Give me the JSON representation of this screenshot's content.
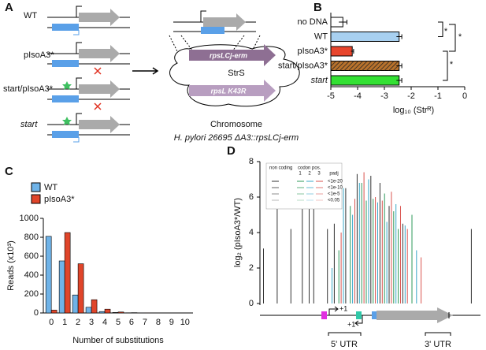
{
  "panel_labels": [
    "A",
    "B",
    "C",
    "D"
  ],
  "panel_a": {
    "constructs": [
      "WT",
      "pIsoA3*",
      "start/pIsoA3*",
      "start"
    ],
    "gene_label": "rpsLCj-erm",
    "phenotype": "StrS",
    "mutant_label": "rpsL K43R",
    "chromosome": "Chromosome",
    "strain": "H. pylori 26695 ΔA3::rpsLCj-erm"
  },
  "chart_data": [
    {
      "type": "hbar",
      "categories": [
        "no DNA",
        "WT",
        "pIsoA3*",
        "start/pIsoA3*",
        "start"
      ],
      "values": [
        -4.55,
        -2.45,
        -4.2,
        -2.45,
        -2.45
      ],
      "errors": [
        0.15,
        0.1,
        0.05,
        0.1,
        0.1
      ],
      "colors": [
        "#ffffff",
        "#a8d0f0",
        "#e8452c",
        "#b8722c",
        "#33e033"
      ],
      "hatch": [
        false,
        false,
        false,
        true,
        false
      ],
      "xlim": [
        -5,
        0
      ],
      "xticks": [
        -5,
        -4,
        -3,
        -2,
        -1,
        0
      ],
      "x_label": "log₁₀ (Strᴿ)",
      "annotations": [
        "*",
        "*",
        "*"
      ]
    },
    {
      "type": "grouped_bar",
      "x": [
        0,
        1,
        2,
        3,
        4,
        5,
        6,
        7,
        8,
        9,
        10
      ],
      "xlim": [
        -0.6,
        10.6
      ],
      "ylim": [
        0,
        1000
      ],
      "yticks": [
        0,
        200,
        400,
        600,
        800,
        1000
      ],
      "x_label": "Number of substitutions",
      "y_label": "Reads (x10³)",
      "legend": "upper left",
      "series": [
        {
          "name": "WT",
          "color": "#6fb3e8",
          "values": [
            810,
            550,
            190,
            60,
            15,
            5,
            2,
            1,
            0,
            0,
            0
          ]
        },
        {
          "name": "pIsoA3*",
          "color": "#e0452a",
          "values": [
            30,
            850,
            520,
            140,
            40,
            10,
            3,
            1,
            0,
            0,
            0
          ]
        }
      ]
    },
    {
      "type": "stem",
      "xlim": [
        0,
        100
      ],
      "ylim": [
        0,
        8
      ],
      "yticks": [
        0,
        2,
        4,
        6,
        8
      ],
      "y_label": "log₂ (pIsoA3*/WT)",
      "legend_title": "codon pos.",
      "padj_title": "padj",
      "padj_levels": [
        "<1e-20",
        "<1e-10",
        "<1e-5",
        "<0.05"
      ],
      "annotations": [
        "+1",
        "+1",
        "5' UTR",
        "3' UTR"
      ],
      "series": [
        {
          "name": "non coding",
          "color": "#333333",
          "x": [
            5,
            11,
            17,
            22,
            25,
            27,
            33,
            36,
            41,
            46,
            52,
            56,
            60,
            66,
            96
          ],
          "values": [
            3.1,
            5.7,
            4.2,
            5.5,
            6.1,
            6.0,
            4.2,
            4.5,
            6.5,
            7.3,
            7.2,
            6.8,
            5.5,
            4.5,
            4.2
          ]
        },
        {
          "name": "1",
          "color": "#2e9a5a",
          "x": [
            38,
            43,
            48,
            50,
            53,
            58,
            62,
            64,
            70
          ],
          "values": [
            3.0,
            5.5,
            6.8,
            5.8,
            5.9,
            6.2,
            5.2,
            4.2,
            5.0
          ]
        },
        {
          "name": "2",
          "color": "#3aa8c8",
          "x": [
            35,
            40,
            44,
            47,
            51,
            55,
            59,
            63,
            67,
            72
          ],
          "values": [
            2.0,
            6.5,
            5.0,
            6.8,
            7.0,
            5.7,
            4.6,
            5.6,
            4.4,
            3.0
          ]
        },
        {
          "name": "3",
          "color": "#d9534f",
          "x": [
            39,
            45,
            49,
            54,
            57,
            61,
            65,
            68,
            74
          ],
          "values": [
            4.0,
            5.9,
            7.4,
            6.0,
            5.8,
            6.3,
            5.5,
            4.2,
            2.6
          ]
        }
      ]
    }
  ]
}
